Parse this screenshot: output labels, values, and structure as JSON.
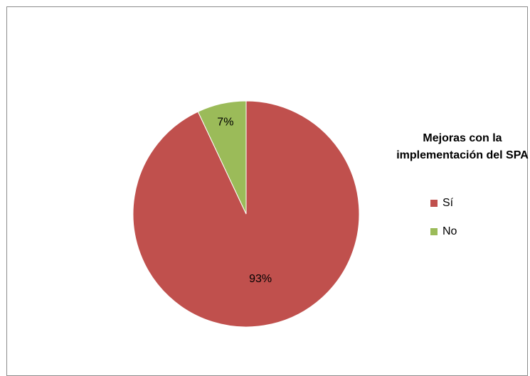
{
  "chart_data": {
    "type": "pie",
    "title": "Mejoras con la implementación del SPA",
    "legend_position": "right",
    "slices": [
      {
        "label": "Sí",
        "value": 93,
        "display": "93%",
        "color": "#c0504d"
      },
      {
        "label": "No",
        "value": 7,
        "display": "7%",
        "color": "#9bbb59"
      }
    ]
  }
}
